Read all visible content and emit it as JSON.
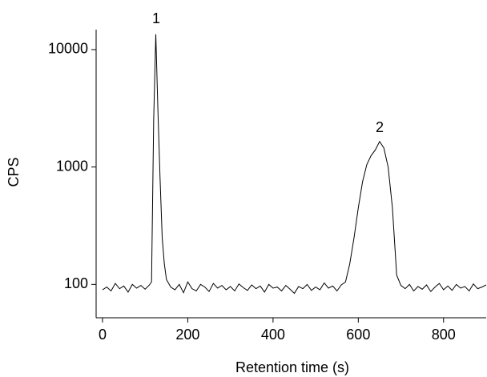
{
  "chart_data": {
    "type": "line",
    "x_label": "Retention time (s)",
    "y_label": "CPS",
    "annotations": [
      "1",
      "2"
    ],
    "x": [
      0,
      10,
      20,
      30,
      40,
      50,
      60,
      70,
      80,
      90,
      100,
      110,
      115,
      120,
      125,
      130,
      135,
      140,
      145,
      150,
      160,
      170,
      180,
      190,
      200,
      210,
      220,
      230,
      240,
      250,
      260,
      270,
      280,
      290,
      300,
      310,
      320,
      330,
      340,
      350,
      360,
      370,
      380,
      390,
      400,
      410,
      420,
      430,
      440,
      450,
      460,
      470,
      480,
      490,
      500,
      510,
      520,
      530,
      540,
      550,
      560,
      570,
      580,
      590,
      600,
      610,
      620,
      630,
      640,
      650,
      660,
      670,
      680,
      690,
      700,
      710,
      720,
      730,
      740,
      750,
      760,
      770,
      780,
      790,
      800,
      810,
      820,
      830,
      840,
      850,
      860,
      870,
      880,
      890,
      900
    ],
    "values": [
      90,
      95,
      88,
      102,
      92,
      97,
      86,
      100,
      93,
      98,
      91,
      99,
      105,
      2500,
      13500,
      3000,
      800,
      250,
      150,
      110,
      95,
      90,
      100,
      85,
      105,
      92,
      88,
      100,
      95,
      87,
      102,
      93,
      98,
      90,
      96,
      88,
      101,
      94,
      89,
      99,
      92,
      97,
      86,
      100,
      93,
      95,
      88,
      98,
      91,
      84,
      96,
      92,
      100,
      89,
      95,
      90,
      103,
      93,
      97,
      88,
      99,
      105,
      150,
      250,
      450,
      750,
      1050,
      1250,
      1400,
      1650,
      1450,
      1000,
      450,
      120,
      98,
      92,
      100,
      88,
      96,
      91,
      99,
      87,
      95,
      102,
      90,
      97,
      89,
      100,
      93,
      96,
      88,
      101,
      92,
      95,
      99
    ],
    "color": "#000000",
    "xlim": [
      -15,
      900
    ],
    "ylim": [
      52,
      14800
    ],
    "xticks": [
      0,
      200,
      400,
      600,
      800
    ],
    "yticks": [
      100,
      1000,
      10000
    ],
    "log_y": true
  }
}
